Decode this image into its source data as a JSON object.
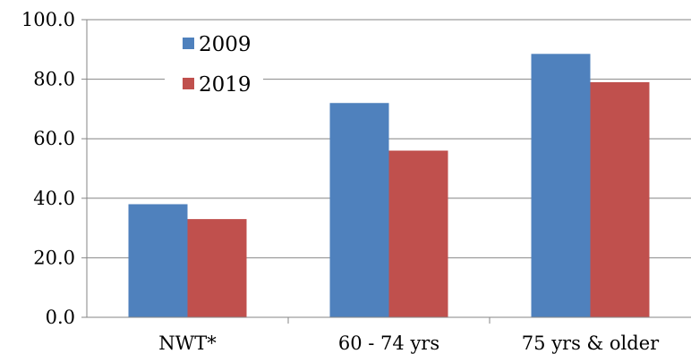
{
  "chart_data": {
    "type": "bar",
    "categories": [
      "NWT*",
      "60 - 74 yrs",
      "75 yrs & older"
    ],
    "series": [
      {
        "name": "2009",
        "values": [
          38,
          72,
          88.5
        ],
        "color": "#4F81BD"
      },
      {
        "name": "2019",
        "values": [
          33,
          56,
          79
        ],
        "color": "#C0504D"
      }
    ],
    "ylim": [
      0,
      100
    ],
    "yticks": [
      "0.0",
      "20.0",
      "40.0",
      "60.0",
      "80.0",
      "100.0"
    ],
    "ytick_values": [
      0,
      20,
      40,
      60,
      80,
      100
    ],
    "grid": true,
    "legend": "top-left",
    "title": "",
    "xlabel": "",
    "ylabel": ""
  }
}
